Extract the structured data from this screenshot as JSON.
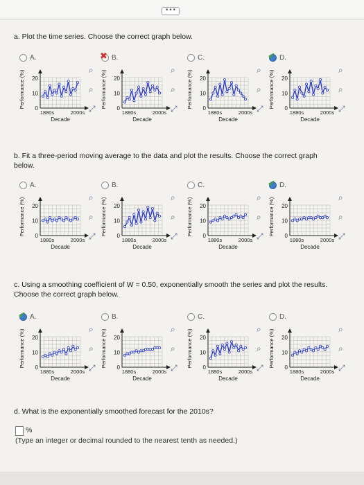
{
  "toolbar": {
    "more_label": "•••"
  },
  "part_a": {
    "text": "a. Plot the time series. Choose the correct graph below.",
    "options": [
      {
        "label": "A.",
        "state": "unselected",
        "mark": ""
      },
      {
        "label": "B.",
        "state": "unselected",
        "mark": "wrong"
      },
      {
        "label": "C.",
        "state": "unselected",
        "mark": ""
      },
      {
        "label": "D.",
        "state": "selected",
        "mark": "correct"
      }
    ]
  },
  "part_b": {
    "text": "b. Fit a three-period moving average to the data and plot the results. Choose the correct graph below.",
    "options": [
      {
        "label": "A.",
        "state": "unselected",
        "mark": ""
      },
      {
        "label": "B.",
        "state": "unselected",
        "mark": ""
      },
      {
        "label": "C.",
        "state": "unselected",
        "mark": ""
      },
      {
        "label": "D.",
        "state": "selected",
        "mark": "correct"
      }
    ]
  },
  "part_c": {
    "text": "c. Using a smoothing coefficient of W = 0.50, exponentially smooth the series and plot the results. Choose the correct graph below.",
    "options": [
      {
        "label": "A.",
        "state": "selected",
        "mark": "correct"
      },
      {
        "label": "B.",
        "state": "unselected",
        "mark": ""
      },
      {
        "label": "C.",
        "state": "unselected",
        "mark": ""
      },
      {
        "label": "D.",
        "state": "unselected",
        "mark": ""
      }
    ]
  },
  "part_d": {
    "text": "d. What is the exponentially smoothed forecast for the 2010s?",
    "answer_value": "",
    "unit": "%",
    "hint": "(Type an integer or decimal rounded to the nearest tenth as needed.)"
  },
  "chart_axis": {
    "ylabel": "Performance (%)",
    "xlabel": "Decade",
    "yticks": [
      "0",
      "10",
      "20"
    ],
    "xticks": [
      "1880s",
      "2000s"
    ]
  },
  "icons": {
    "zoom": "magnify-icon",
    "zoom_out": "zoom-out-icon",
    "expand": "expand-icon"
  },
  "colors": {
    "series": "#2d3ec9",
    "marker": "#ffffff",
    "correct": "#49a33b",
    "wrong": "#d0312d",
    "selected": "#3d7cc9"
  },
  "chart_data": [
    {
      "type": "line",
      "part": "a",
      "option": "A",
      "series": [
        {
          "values": [
            8,
            11,
            7,
            15,
            9,
            12,
            10,
            16,
            8,
            14,
            11,
            18,
            9,
            13,
            12,
            17
          ]
        }
      ],
      "ylim": [
        0,
        25
      ]
    },
    {
      "type": "line",
      "part": "a",
      "option": "B",
      "series": [
        {
          "values": [
            4,
            7,
            6,
            12,
            5,
            10,
            14,
            8,
            13,
            9,
            17,
            11,
            15,
            12,
            14,
            10
          ]
        }
      ],
      "ylim": [
        0,
        25
      ]
    },
    {
      "type": "line",
      "part": "a",
      "option": "C",
      "series": [
        {
          "values": [
            6,
            10,
            14,
            8,
            16,
            9,
            19,
            11,
            13,
            17,
            9,
            15,
            12,
            10,
            8,
            6
          ]
        }
      ],
      "ylim": [
        0,
        25
      ]
    },
    {
      "type": "line",
      "part": "a",
      "option": "D",
      "series": [
        {
          "values": [
            7,
            12,
            6,
            14,
            10,
            8,
            16,
            11,
            18,
            9,
            15,
            13,
            19,
            10,
            14,
            12
          ]
        }
      ],
      "ylim": [
        0,
        25
      ]
    },
    {
      "type": "line",
      "part": "b",
      "option": "A",
      "series": [
        {
          "values": [
            10,
            11,
            9,
            12,
            10,
            11,
            10,
            12,
            11,
            10,
            12,
            11,
            10,
            11,
            12,
            11
          ]
        }
      ],
      "ylim": [
        0,
        25
      ]
    },
    {
      "type": "line",
      "part": "b",
      "option": "B",
      "series": [
        {
          "values": [
            6,
            9,
            12,
            7,
            14,
            8,
            17,
            9,
            16,
            11,
            19,
            12,
            18,
            10,
            15,
            13
          ]
        }
      ],
      "ylim": [
        0,
        25
      ]
    },
    {
      "type": "line",
      "part": "b",
      "option": "C",
      "series": [
        {
          "values": [
            9,
            10,
            11,
            10,
            12,
            11,
            13,
            12,
            11,
            12,
            13,
            14,
            12,
            13,
            12,
            14
          ]
        }
      ],
      "ylim": [
        0,
        25
      ]
    },
    {
      "type": "line",
      "part": "b",
      "option": "D",
      "series": [
        {
          "values": [
            10,
            11,
            10,
            11,
            11,
            12,
            11,
            12,
            12,
            11,
            12,
            13,
            12,
            12,
            13,
            12
          ]
        }
      ],
      "ylim": [
        0,
        25
      ]
    },
    {
      "type": "line",
      "part": "c",
      "option": "A",
      "series": [
        {
          "values": [
            7,
            8,
            7,
            9,
            8,
            10,
            9,
            11,
            10,
            12,
            9,
            13,
            11,
            14,
            12,
            13
          ]
        }
      ],
      "ylim": [
        0,
        25
      ]
    },
    {
      "type": "line",
      "part": "c",
      "option": "B",
      "series": [
        {
          "values": [
            8,
            9,
            9,
            10,
            10,
            11,
            10,
            11,
            11,
            12,
            12,
            12,
            12,
            13,
            13,
            13
          ]
        }
      ],
      "ylim": [
        0,
        25
      ]
    },
    {
      "type": "line",
      "part": "c",
      "option": "C",
      "series": [
        {
          "values": [
            6,
            11,
            8,
            14,
            9,
            15,
            12,
            16,
            10,
            17,
            13,
            15,
            11,
            14,
            12,
            13
          ]
        }
      ],
      "ylim": [
        0,
        25
      ]
    },
    {
      "type": "line",
      "part": "c",
      "option": "D",
      "series": [
        {
          "values": [
            8,
            10,
            9,
            11,
            10,
            12,
            11,
            13,
            12,
            11,
            13,
            12,
            14,
            13,
            12,
            14
          ]
        }
      ],
      "ylim": [
        0,
        25
      ]
    }
  ]
}
